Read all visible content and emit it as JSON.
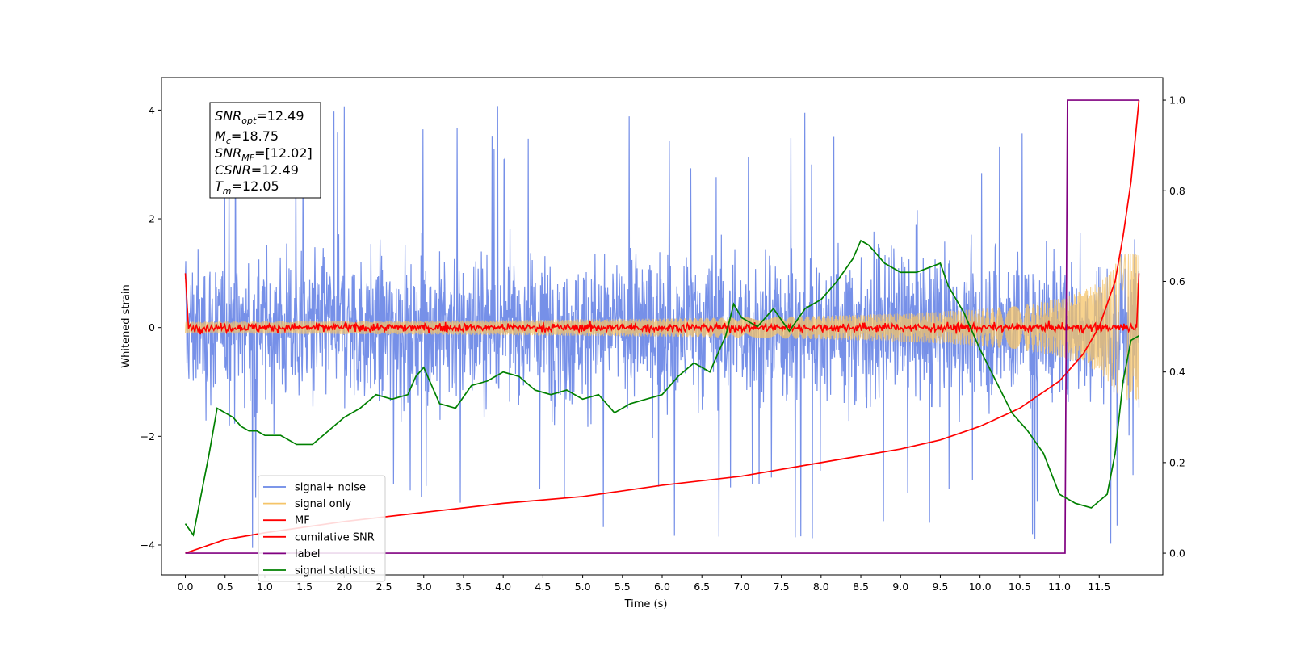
{
  "chart_data": {
    "type": "line",
    "xlabel": "Time (s)",
    "ylabel": "Whitened strain",
    "xlim": [
      -0.3,
      12.3
    ],
    "ylim": [
      -4.55,
      4.6
    ],
    "y2lim": [
      -0.048,
      1.05
    ],
    "x_ticks": [
      "0.0",
      "0.5",
      "1.0",
      "1.5",
      "2.0",
      "2.5",
      "3.0",
      "3.5",
      "4.0",
      "4.5",
      "5.0",
      "5.5",
      "6.0",
      "6.5",
      "7.0",
      "7.5",
      "8.0",
      "8.5",
      "9.0",
      "9.5",
      "10.0",
      "10.5",
      "11.0",
      "11.5"
    ],
    "y_ticks": [
      "4",
      "2",
      "0",
      "−2",
      "−4"
    ],
    "y2_ticks": [
      "1.0",
      "0.8",
      "0.6",
      "0.4",
      "0.2",
      "0.0"
    ],
    "grid": false,
    "legend_position": "lower-left",
    "annotation": {
      "snr_opt": {
        "base": "SNR",
        "sub": "opt",
        "value": "=12.49"
      },
      "mc": {
        "base": "M",
        "sub": "c",
        "value": "=18.75"
      },
      "snr_mf": {
        "base": "SNR",
        "sub": "MF",
        "value": "=[12.02]"
      },
      "csnr": {
        "base": "CSNR",
        "sub": "",
        "value": "=12.49"
      },
      "tm": {
        "base": "T",
        "sub": "m",
        "value": "=12.05"
      }
    },
    "series": [
      {
        "name": "signal+ noise",
        "color": "#6a87e6",
        "axis": "left",
        "description_values": "noise band approx ±2.2 with spikes up to 4.17 and down to -4.1"
      },
      {
        "name": "signal only",
        "color": "#f5c468",
        "axis": "left",
        "description_values": "chirp amplitude near 0 growing to ~1.3 at t=12.0"
      },
      {
        "name": "MF",
        "color": "#ff0000",
        "axis": "left",
        "description_values": "starts at 1.0 at t=0, noise around 0 with amplitude ~0.15, ends at 1.0 at t=12.0"
      },
      {
        "name": "cumilative SNR",
        "color": "#ff0000",
        "axis": "right",
        "x": [
          0.0,
          0.5,
          1.0,
          2.0,
          3.0,
          4.0,
          5.0,
          6.0,
          7.0,
          8.0,
          9.0,
          9.5,
          10.0,
          10.5,
          11.0,
          11.3,
          11.5,
          11.7,
          11.8,
          11.9,
          12.0
        ],
        "values": [
          0.0,
          0.03,
          0.045,
          0.07,
          0.09,
          0.11,
          0.125,
          0.15,
          0.17,
          0.2,
          0.23,
          0.25,
          0.28,
          0.32,
          0.38,
          0.44,
          0.5,
          0.6,
          0.7,
          0.82,
          1.0
        ]
      },
      {
        "name": "label",
        "color": "#800080",
        "axis": "right",
        "x": [
          0.0,
          11.07,
          11.1,
          12.0
        ],
        "values": [
          0.0,
          0.0,
          1.0,
          1.0
        ]
      },
      {
        "name": "signal statistics",
        "color": "#008000",
        "axis": "right",
        "x": [
          0.0,
          0.1,
          0.2,
          0.3,
          0.4,
          0.5,
          0.6,
          0.7,
          0.8,
          0.9,
          1.0,
          1.2,
          1.4,
          1.6,
          1.8,
          2.0,
          2.2,
          2.4,
          2.6,
          2.8,
          2.9,
          3.0,
          3.2,
          3.4,
          3.6,
          3.8,
          4.0,
          4.2,
          4.4,
          4.6,
          4.8,
          5.0,
          5.2,
          5.4,
          5.6,
          5.8,
          6.0,
          6.2,
          6.4,
          6.6,
          6.8,
          6.9,
          7.0,
          7.2,
          7.4,
          7.6,
          7.8,
          8.0,
          8.2,
          8.4,
          8.5,
          8.6,
          8.8,
          9.0,
          9.2,
          9.5,
          9.6,
          9.8,
          10.0,
          10.2,
          10.4,
          10.6,
          10.8,
          11.0,
          11.2,
          11.4,
          11.6,
          11.7,
          11.8,
          11.9,
          12.0
        ],
        "values": [
          0.065,
          0.04,
          0.13,
          0.22,
          0.32,
          0.31,
          0.3,
          0.28,
          0.27,
          0.27,
          0.26,
          0.26,
          0.24,
          0.24,
          0.27,
          0.3,
          0.32,
          0.35,
          0.34,
          0.35,
          0.39,
          0.41,
          0.33,
          0.32,
          0.37,
          0.38,
          0.4,
          0.39,
          0.36,
          0.35,
          0.36,
          0.34,
          0.35,
          0.31,
          0.33,
          0.34,
          0.35,
          0.39,
          0.42,
          0.4,
          0.48,
          0.55,
          0.52,
          0.5,
          0.54,
          0.49,
          0.54,
          0.56,
          0.6,
          0.65,
          0.69,
          0.68,
          0.64,
          0.62,
          0.62,
          0.64,
          0.59,
          0.53,
          0.45,
          0.38,
          0.31,
          0.27,
          0.22,
          0.13,
          0.11,
          0.1,
          0.13,
          0.22,
          0.38,
          0.47,
          0.48
        ]
      }
    ]
  }
}
